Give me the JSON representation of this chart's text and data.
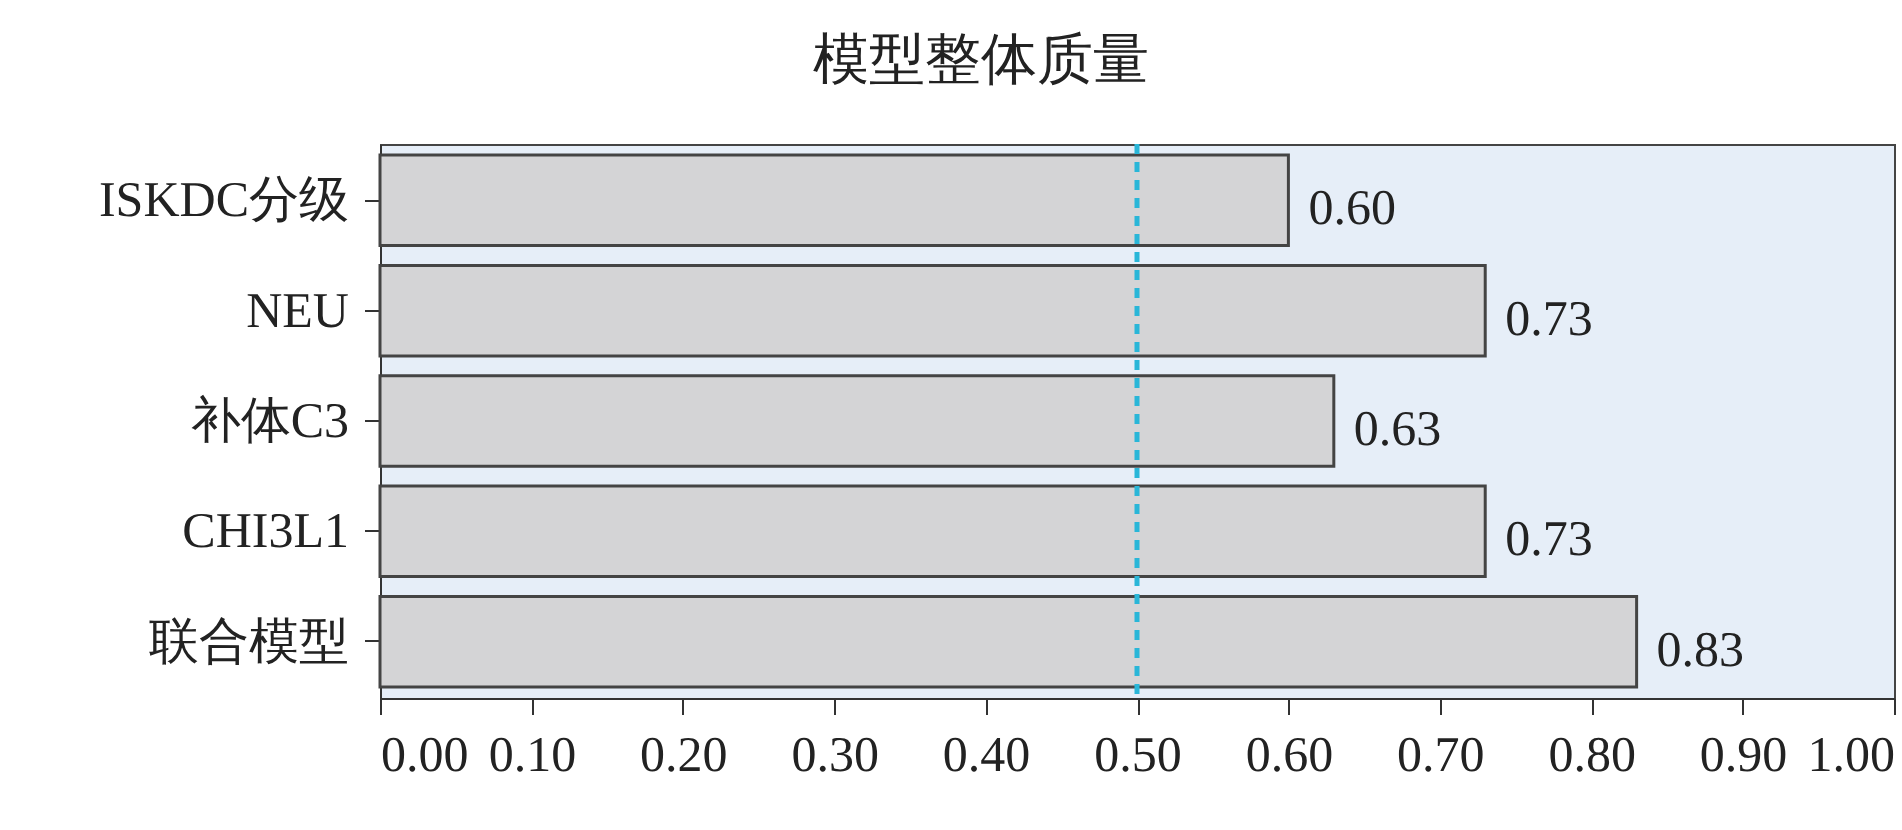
{
  "chart_data": {
    "type": "bar",
    "orientation": "horizontal",
    "title": "模型整体质量",
    "categories": [
      "ISKDC分级",
      "NEU",
      "补体C3",
      "CHI3L1",
      "联合模型"
    ],
    "values": [
      0.6,
      0.73,
      0.63,
      0.73,
      0.83
    ],
    "value_labels": [
      "0.60",
      "0.73",
      "0.63",
      "0.73",
      "0.83"
    ],
    "color": "#d4d4d6",
    "xlim": [
      0,
      1
    ],
    "xticks": [
      {
        "value": 0,
        "label": "0.00"
      },
      {
        "value": 0.1,
        "label": "0.10"
      },
      {
        "value": 0.2,
        "label": "0.20"
      },
      {
        "value": 0.3,
        "label": "0.30"
      },
      {
        "value": 0.4,
        "label": "0.40"
      },
      {
        "value": 0.5,
        "label": "0.50"
      },
      {
        "value": 0.6,
        "label": "0.60"
      },
      {
        "value": 0.7,
        "label": "0.70"
      },
      {
        "value": 0.8,
        "label": "0.80"
      },
      {
        "value": 0.9,
        "label": "0.90"
      },
      {
        "value": 1,
        "label": "1.00"
      }
    ],
    "ref_lines": [
      {
        "axis": "x",
        "value": 0.5,
        "color": "#29b6d8",
        "line_style": "dashed"
      }
    ],
    "grid": false
  }
}
